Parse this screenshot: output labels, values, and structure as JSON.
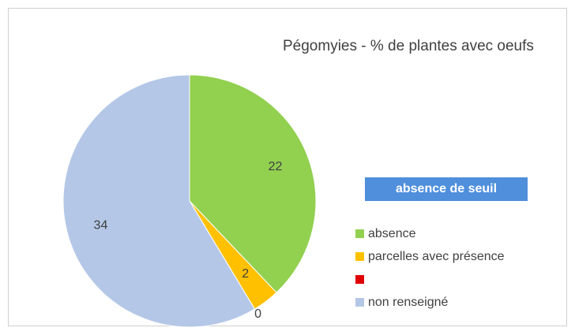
{
  "chart_data": {
    "type": "pie",
    "title": "Pégomyies - % de plantes avec oeufs",
    "annotation": "absence de seuil",
    "categories": [
      "absence",
      "parcelles avec présence",
      null,
      "non renseigné"
    ],
    "values": [
      22,
      2,
      0,
      34
    ],
    "colors": [
      "#92d050",
      "#ffc000",
      "#e00000",
      "#b4c7e7"
    ],
    "legend": "right"
  }
}
